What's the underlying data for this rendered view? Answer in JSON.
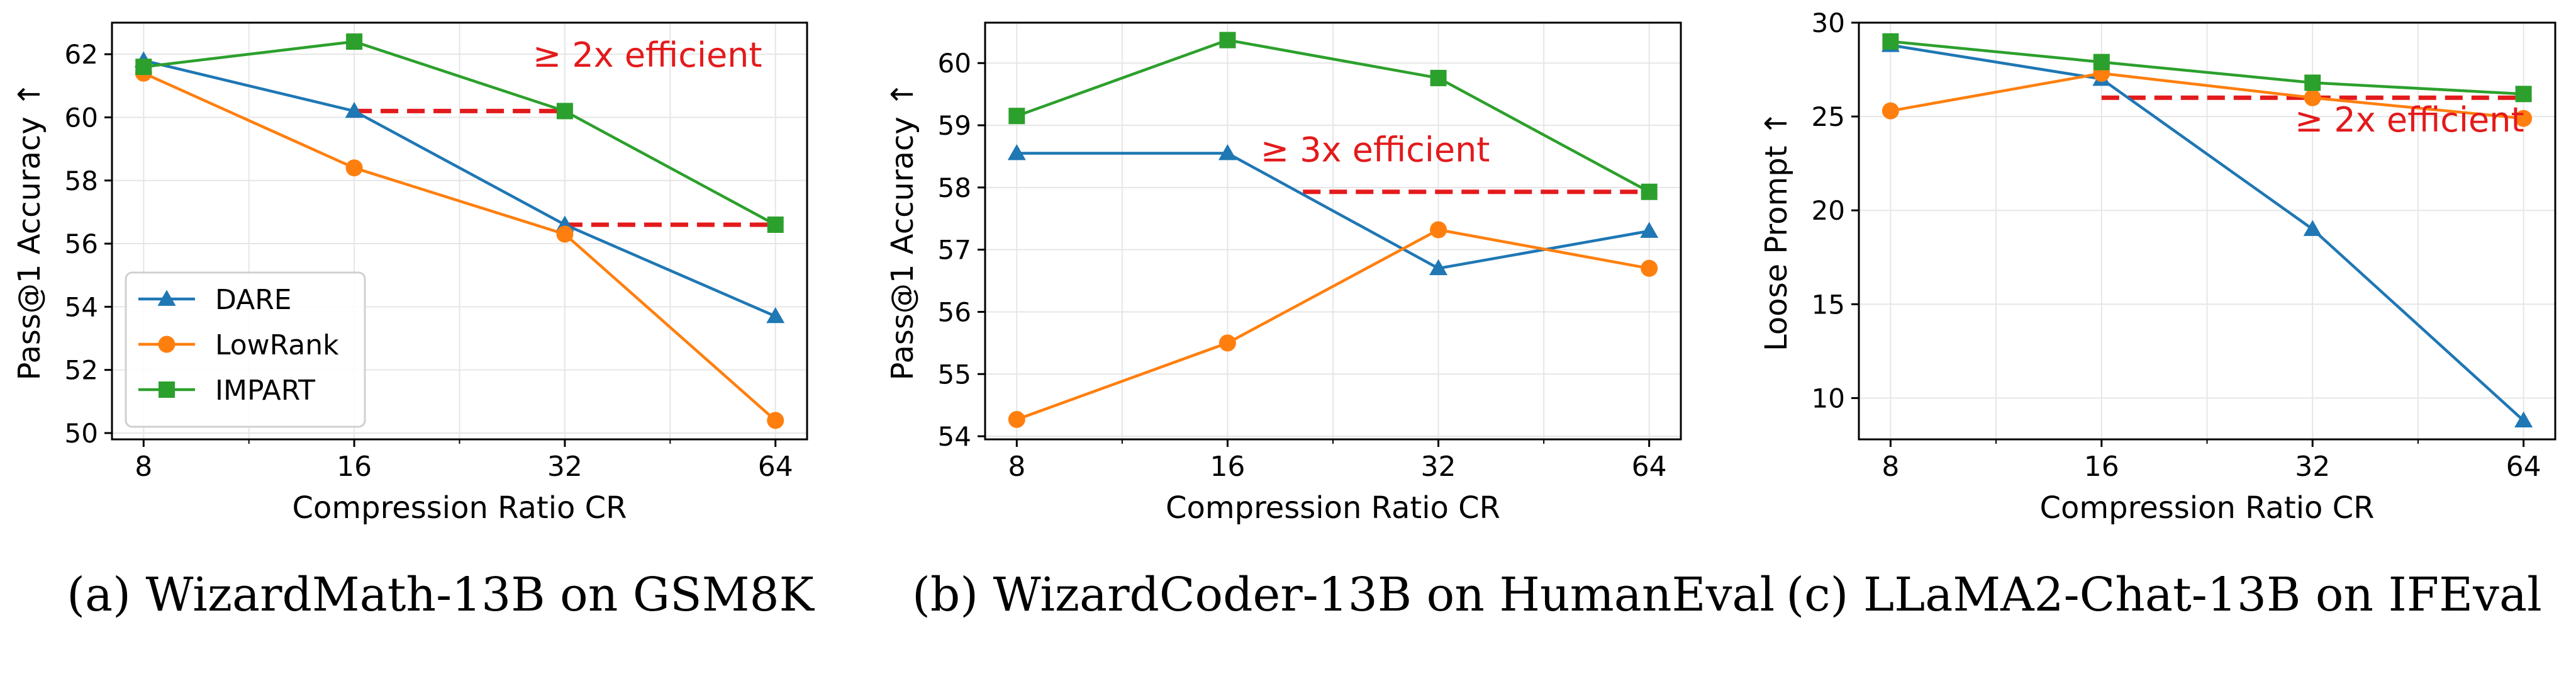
{
  "colors": {
    "DARE": "#1f77b4",
    "LowRank": "#ff7f0e",
    "IMPART": "#2ca02c",
    "annotation": "#e31a1c",
    "grid": "#e6e6e6",
    "axis": "#000000"
  },
  "chart_data": [
    {
      "type": "line",
      "caption": "(a) WizardMath-13B on GSM8K",
      "xlabel": "Compression Ratio CR",
      "ylabel": "Pass@1 Accuracy ↑",
      "x_scale": "log2",
      "x": [
        8,
        16,
        32,
        64
      ],
      "x_ticks": [
        "8",
        "16",
        "32",
        "64"
      ],
      "ylim": [
        49.8,
        63.0
      ],
      "y_ticks": [
        50,
        52,
        54,
        56,
        58,
        60,
        62
      ],
      "grid": true,
      "legend": "lower-left",
      "series": [
        {
          "name": "DARE",
          "marker": "triangle",
          "values": [
            61.8,
            60.2,
            56.6,
            53.7
          ]
        },
        {
          "name": "LowRank",
          "marker": "circle",
          "values": [
            61.4,
            58.4,
            56.3,
            50.4
          ]
        },
        {
          "name": "IMPART",
          "marker": "square",
          "values": [
            61.6,
            62.4,
            60.2,
            56.6
          ]
        }
      ],
      "annotation": {
        "text": "≥ 2x efficient",
        "x": 42,
        "y": 61.6
      },
      "dashed_lines": [
        {
          "x0": 16,
          "x1": 32,
          "y": 60.2
        },
        {
          "x0": 32,
          "x1": 64,
          "y": 56.6
        }
      ]
    },
    {
      "type": "line",
      "caption": "(b) WizardCoder-13B on HumanEval",
      "xlabel": "Compression Ratio CR",
      "ylabel": "Pass@1 Accuracy ↑",
      "x_scale": "log2",
      "x": [
        8,
        16,
        32,
        64
      ],
      "x_ticks": [
        "8",
        "16",
        "32",
        "64"
      ],
      "ylim": [
        53.95,
        60.65
      ],
      "y_ticks": [
        54,
        55,
        56,
        57,
        58,
        59,
        60
      ],
      "grid": true,
      "legend": "none",
      "series": [
        {
          "name": "DARE",
          "marker": "triangle",
          "values": [
            58.55,
            58.55,
            56.7,
            57.3
          ]
        },
        {
          "name": "LowRank",
          "marker": "circle",
          "values": [
            54.27,
            55.5,
            57.32,
            56.7
          ]
        },
        {
          "name": "IMPART",
          "marker": "square",
          "values": [
            59.15,
            60.37,
            59.76,
            57.93
          ]
        }
      ],
      "annotation": {
        "text": "≥ 3x efficient",
        "x": 26,
        "y": 58.42
      },
      "dashed_lines": [
        {
          "x0": 20.5,
          "x1": 64,
          "y": 57.93
        }
      ]
    },
    {
      "type": "line",
      "caption": "(c) LLaMA2-Chat-13B on IFEval",
      "xlabel": "Compression Ratio CR",
      "ylabel": "Loose Prompt ↑",
      "x_scale": "log2",
      "x": [
        8,
        16,
        32,
        64
      ],
      "x_ticks": [
        "8",
        "16",
        "32",
        "64"
      ],
      "ylim": [
        7.8,
        30.0
      ],
      "y_ticks": [
        10,
        15,
        20,
        25,
        30
      ],
      "grid": true,
      "legend": "none",
      "series": [
        {
          "name": "DARE",
          "marker": "triangle",
          "values": [
            28.8,
            27.0,
            19.0,
            8.8
          ]
        },
        {
          "name": "LowRank",
          "marker": "circle",
          "values": [
            25.3,
            27.3,
            26.0,
            24.9
          ]
        },
        {
          "name": "IMPART",
          "marker": "square",
          "values": [
            29.0,
            27.9,
            26.8,
            26.2
          ]
        }
      ],
      "annotation": {
        "text": "≥ 2x efficient",
        "x": 44,
        "y": 24.2
      },
      "dashed_lines": [
        {
          "x0": 16,
          "x1": 64,
          "y": 26.0
        }
      ]
    }
  ]
}
